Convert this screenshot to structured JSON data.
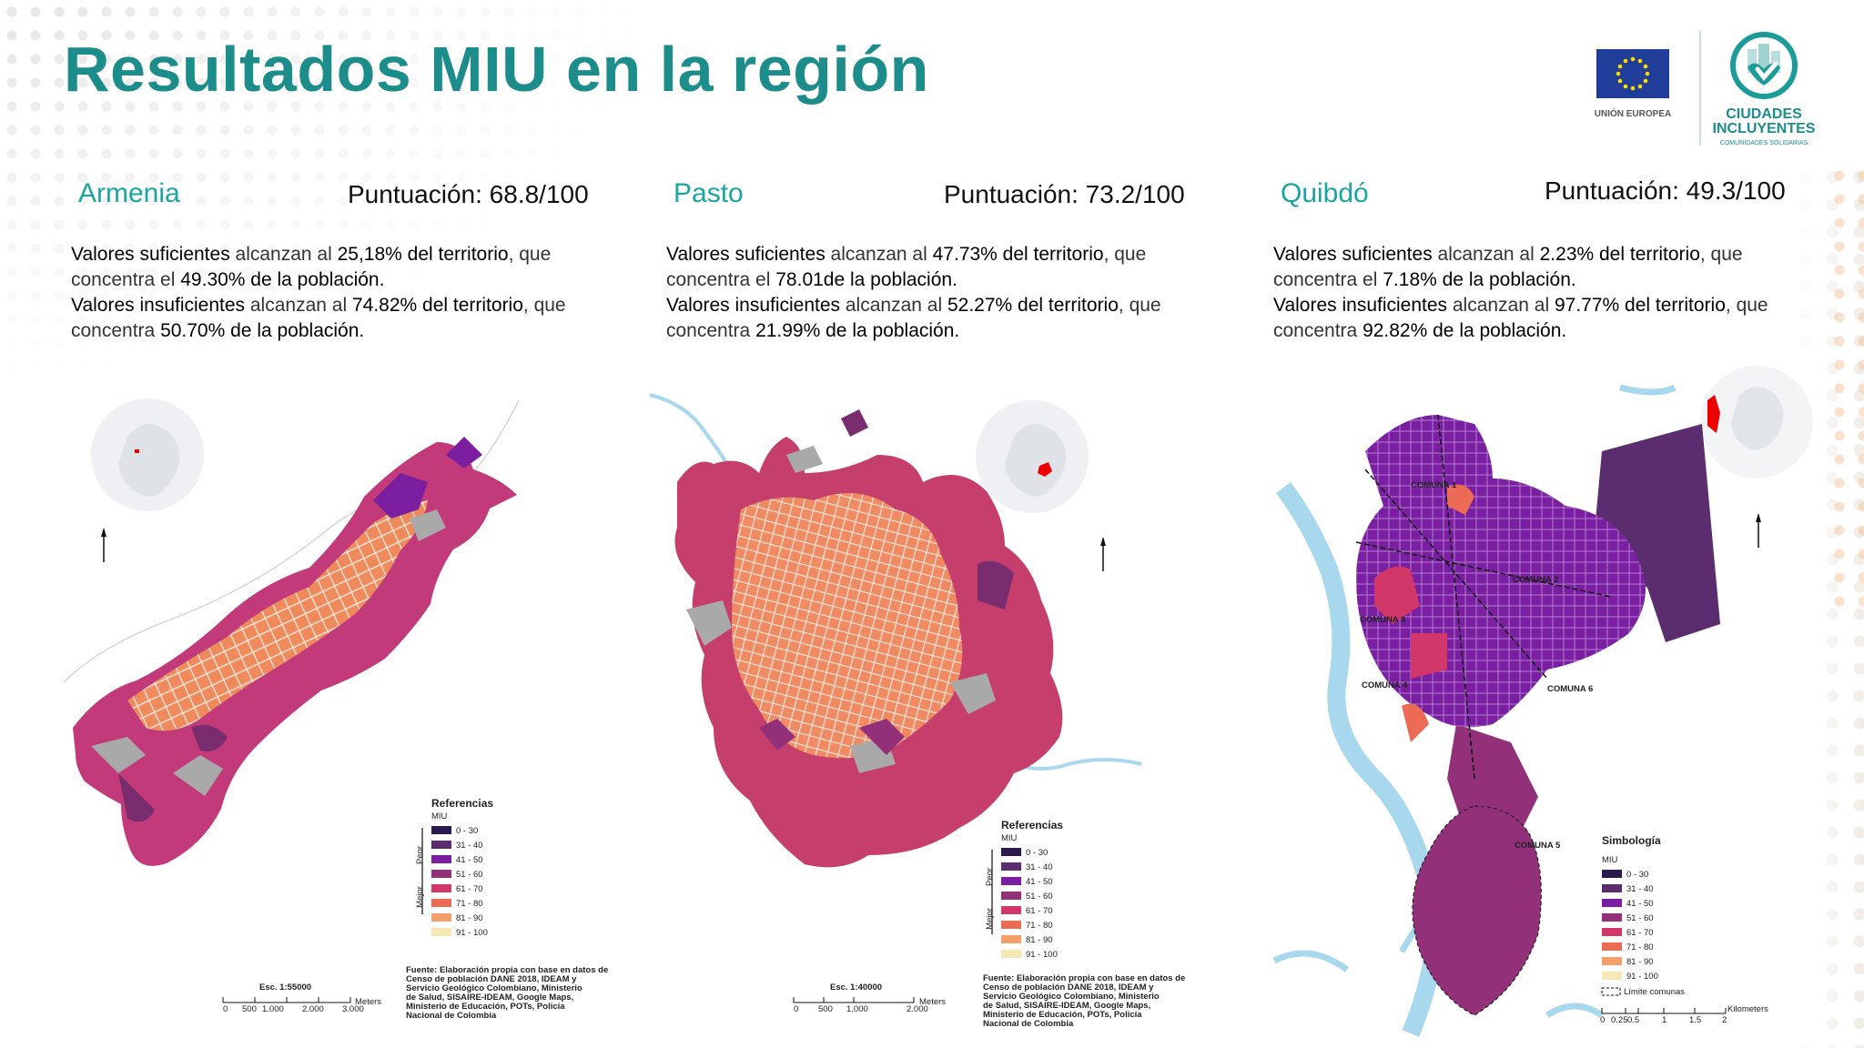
{
  "title": "Resultados MIU en la región",
  "logos": {
    "eu_label": "UNIÓN EUROPEA",
    "ci_line1": "CIUDADES",
    "ci_line2": "INCLUYENTES",
    "ci_sub": "COMUNIDADES SOLIDARIAS"
  },
  "cities": [
    {
      "name": "Armenia",
      "score": "Puntuación: 68.8/100",
      "line1_a": "Valores suficientes",
      "line1_b": " alcanzan al ",
      "line1_c": "25,18% del territorio",
      "line1_d": ", que",
      "line2_a": "concentra el ",
      "line2_b": "49.30% de la población.",
      "line3_a": "Valores insuficientes",
      "line3_b": " alcanzan al ",
      "line3_c": "74.82% del territorio",
      "line3_d": ", que",
      "line4_a": "concentra ",
      "line4_b": "50.70% de la población.",
      "legend_title": "Referencias",
      "legend_sub": "MIU",
      "scale": "Esc. 1:55000",
      "scale_ticks": [
        "0",
        "500",
        "1.000",
        "2.000",
        "3.000"
      ],
      "scale_unit": "Meters",
      "worse": "Peor",
      "better": "Mejor",
      "source": [
        "Fuente: Elaboración propia con base en datos de",
        "Censo de población DANE 2018, IDEAM y",
        "Servicio Geológico Colombiano, Ministerio",
        "de Salud, SISAIRE-IDEAM, Google Maps,",
        "Ministerio de Educación, POTs, Policía",
        "Nacional de Colombia"
      ]
    },
    {
      "name": "Pasto",
      "score": "Puntuación: 73.2/100",
      "line1_a": "Valores suficientes",
      "line1_b": " alcanzan al ",
      "line1_c": "47.73% del territorio",
      "line1_d": ", que",
      "line2_a": "concentra el ",
      "line2_b": "78.01de la población.",
      "line3_a": "Valores insuficientes",
      "line3_b": " alcanzan al ",
      "line3_c": "52.27% del territorio",
      "line3_d": ", que",
      "line4_a": "concentra ",
      "line4_b": "21.99% de la población.",
      "legend_title": "Referencias",
      "legend_sub": "MIU",
      "scale": "Esc. 1:40000",
      "scale_ticks": [
        "0",
        "500",
        "1.000",
        "2.000"
      ],
      "scale_unit": "Meters",
      "worse": "Peor",
      "better": "Mejor",
      "source": [
        "Fuente: Elaboración propia con base en datos de",
        "Censo de población DANE 2018, IDEAM y",
        "Servicio Geológico Colombiano, Ministerio",
        "de Salud, SISAIRE-IDEAM, Google Maps,",
        "Ministerio de Educación, POTs, Policía",
        "Nacional de Colombia"
      ]
    },
    {
      "name": "Quibdó",
      "score": "Puntuación: 49.3/100",
      "line1_a": "Valores suficientes",
      "line1_b": " alcanzan al ",
      "line1_c": "2.23% del territorio",
      "line1_d": ", que",
      "line2_a": "concentra el ",
      "line2_b": "7.18% de la población.",
      "line3_a": "Valores insuficientes",
      "line3_b": " alcanzan al ",
      "line3_c": "97.77% del territorio",
      "line3_d": ", que",
      "line4_a": "concentra ",
      "line4_b": "92.82% de la población.",
      "legend_title": "Simbología",
      "legend_sub": "MIU",
      "limit_label": "Límite comunas",
      "scale_ticks": [
        "0",
        "0.25",
        "0.5",
        "1",
        "1.5",
        "2"
      ],
      "scale_unit": "Kilometers",
      "comunas": [
        "COMUNA 1",
        "COMUNA 2",
        "COMUNA 3",
        "COMUNA 4",
        "COMUNA 5",
        "COMUNA 6"
      ]
    }
  ],
  "legend_ranges": [
    "0 - 30",
    "31 - 40",
    "41 - 50",
    "51 - 60",
    "61 - 70",
    "71 - 80",
    "81 - 90",
    "91 - 100"
  ],
  "legend_colors": [
    "#2a1a4e",
    "#5c2d6e",
    "#7a1fa2",
    "#92307a",
    "#d2376a",
    "#ec6b55",
    "#f4a06c",
    "#f7e9b4"
  ]
}
